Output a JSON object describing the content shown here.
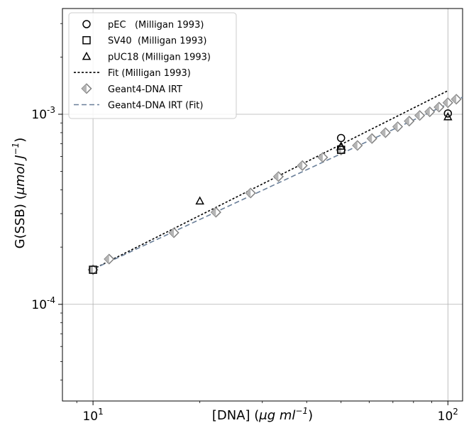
{
  "chart_data": {
    "type": "scatter",
    "title": "",
    "x_scale": "log",
    "y_scale": "log",
    "xlim": [
      8.2,
      110
    ],
    "ylim": [
      3.1e-05,
      0.0036
    ],
    "grid": true,
    "legend_position": "top-left",
    "xlabel": {
      "text": "[DNA] (",
      "math": "μg ml",
      "sup": "−1",
      "close": ")"
    },
    "ylabel": {
      "text": "G(SSB) (",
      "math": "μmol J",
      "sup": "−1",
      "close": ")"
    },
    "x_ticks": [
      {
        "value": 10,
        "base": "10",
        "exp": "1"
      },
      {
        "value": 100,
        "base": "10",
        "exp": "2"
      }
    ],
    "y_ticks": [
      {
        "value": 0.0001,
        "base": "10",
        "exp": "-4"
      },
      {
        "value": 0.001,
        "base": "10",
        "exp": "-3"
      }
    ],
    "series": [
      {
        "name": "pEC   (Milligan 1993)",
        "marker": "circle",
        "color": "#000000",
        "x": [
          50,
          100
        ],
        "y": [
          0.00075,
          0.00101
        ]
      },
      {
        "name": "SV40  (Milligan 1993)",
        "marker": "square",
        "color": "#000000",
        "x": [
          10,
          50
        ],
        "y": [
          0.000152,
          0.00065
        ]
      },
      {
        "name": "pUC18 (Milligan 1993)",
        "marker": "triangle",
        "color": "#000000",
        "x": [
          20,
          50,
          100
        ],
        "y": [
          0.00035,
          0.00068,
          0.00097
        ]
      },
      {
        "name": "Fit (Milligan 1993)",
        "line": "dotted",
        "color": "#000000",
        "x": [
          10,
          100
        ],
        "y": [
          0.000153,
          0.00133
        ]
      },
      {
        "name": "Geant4-DNA IRT",
        "marker": "diamond",
        "color": "#808080",
        "x": [
          10,
          11.1,
          16.9,
          22.2,
          27.8,
          33.3,
          38.9,
          44.4,
          50,
          55.6,
          61.1,
          66.7,
          72.2,
          77.8,
          83.3,
          88.9,
          94.4,
          100,
          105.6
        ],
        "y": [
          0.000152,
          0.000173,
          0.000238,
          0.000305,
          0.000385,
          0.00047,
          0.000537,
          0.000593,
          0.000648,
          0.000685,
          0.000745,
          0.0008,
          0.00086,
          0.00092,
          0.000985,
          0.00103,
          0.00109,
          0.00115,
          0.0012
        ]
      },
      {
        "name": "Geant4-DNA IRT (Fit)",
        "line": "dashed",
        "color": "#6a7f99",
        "x": [
          10,
          110
        ],
        "y": [
          0.000153,
          0.00123
        ]
      }
    ]
  }
}
